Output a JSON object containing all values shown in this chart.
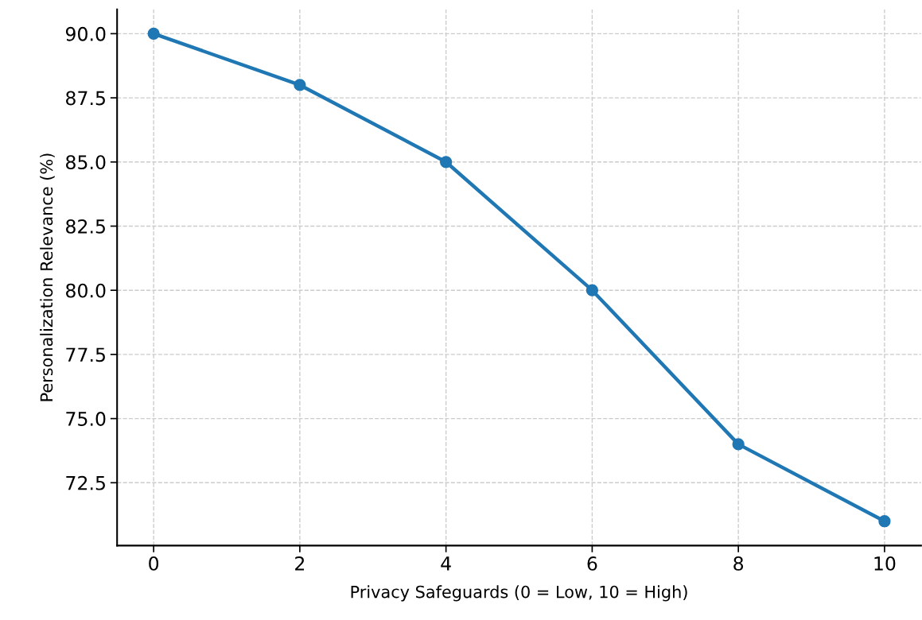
{
  "chart_data": {
    "type": "line",
    "xlabel": "Privacy Safeguards (0 = Low, 10 = High)",
    "ylabel": "Personalization Relevance (%)",
    "x": [
      0,
      2,
      4,
      6,
      8,
      10
    ],
    "series": [
      {
        "color": "#1f77b4",
        "values": [
          90,
          88,
          85,
          80,
          74,
          71
        ]
      }
    ],
    "xlim": [
      -0.5,
      10.5
    ],
    "ylim": [
      70.05,
      90.95
    ],
    "xticks": [
      0,
      2,
      4,
      6,
      8,
      10
    ],
    "yticks": [
      {
        "value": 72.5,
        "label": "72.5"
      },
      {
        "value": 75,
        "label": "75.0"
      },
      {
        "value": 77.5,
        "label": "77.5"
      },
      {
        "value": 80,
        "label": "80.0"
      },
      {
        "value": 82.5,
        "label": "82.5"
      },
      {
        "value": 85,
        "label": "85.0"
      },
      {
        "value": 87.5,
        "label": "87.5"
      },
      {
        "value": 90,
        "label": "90.0"
      }
    ],
    "grid": true,
    "marker": "circle",
    "line_style": "solid"
  }
}
